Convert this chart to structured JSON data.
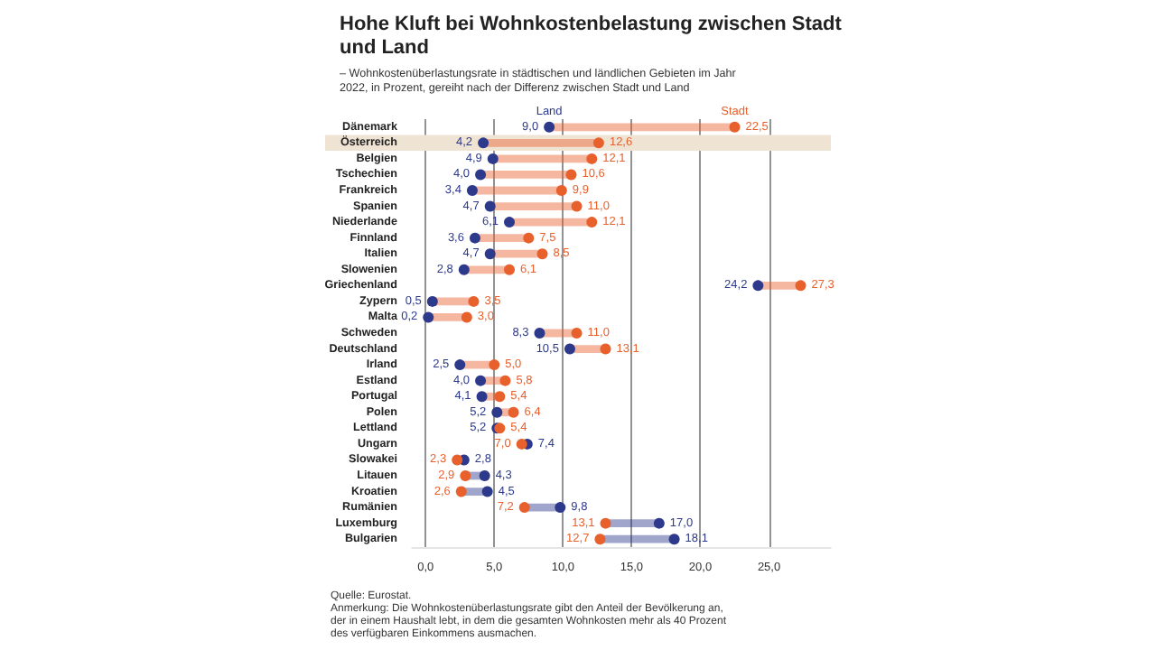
{
  "chart_data": {
    "type": "scatter",
    "orientation": "horizontal",
    "title": "Hohe Kluft bei Wohnkostenbelastung zwischen Stadt und Land",
    "subtitle": "– Wohnkostenüberlastungsrate in städtischen und ländlichen Gebieten im Jahr 2022, in Prozent, gereiht nach der Differenz zwischen Stadt und Land",
    "categories": [
      "Dänemark",
      "Österreich",
      "Belgien",
      "Tschechien",
      "Frankreich",
      "Spanien",
      "Niederlande",
      "Finnland",
      "Italien",
      "Slowenien",
      "Griechenland",
      "Zypern",
      "Malta",
      "Schweden",
      "Deutschland",
      "Irland",
      "Estland",
      "Portugal",
      "Polen",
      "Lettland",
      "Ungarn",
      "Slowakei",
      "Litauen",
      "Kroatien",
      "Rumänien",
      "Luxemburg",
      "Bulgarien"
    ],
    "series": [
      {
        "name": "Land",
        "color": "#2d3a8c",
        "values": [
          9.0,
          4.2,
          4.9,
          4.0,
          3.4,
          4.7,
          6.1,
          3.6,
          4.7,
          2.8,
          24.2,
          0.5,
          0.2,
          8.3,
          10.5,
          2.5,
          4.0,
          4.1,
          5.2,
          5.2,
          7.4,
          2.8,
          4.3,
          4.5,
          9.8,
          17.0,
          18.1
        ],
        "value_labels": [
          "9,0",
          "4,2",
          "4,9",
          "4,0",
          "3,4",
          "4,7",
          "6,1",
          "3,6",
          "4,7",
          "2,8",
          "24,2",
          "0,5",
          "0,2",
          "8,3",
          "10,5",
          "2,5",
          "4,0",
          "4,1",
          "5,2",
          "5,2",
          "7,4",
          "2,8",
          "4,3",
          "4,5",
          "9,8",
          "17,0",
          "18,1"
        ]
      },
      {
        "name": "Stadt",
        "color": "#e8602c",
        "values": [
          22.5,
          12.6,
          12.1,
          10.6,
          9.9,
          11.0,
          12.1,
          7.5,
          8.5,
          6.1,
          27.3,
          3.5,
          3.0,
          11.0,
          13.1,
          5.0,
          5.8,
          5.4,
          6.4,
          5.4,
          7.0,
          2.3,
          2.9,
          2.6,
          7.2,
          13.1,
          12.7
        ],
        "value_labels": [
          "22,5",
          "12,6",
          "12,1",
          "10,6",
          "9,9",
          "11,0",
          "12,1",
          "7,5",
          "8,5",
          "6,1",
          "27,3",
          "3,5",
          "3,0",
          "11,0",
          "13,1",
          "5,0",
          "5,8",
          "5,4",
          "6,4",
          "5,4",
          "7,0",
          "2,3",
          "2,9",
          "2,6",
          "7,2",
          "13,1",
          "12,7"
        ]
      }
    ],
    "xlim": [
      -1,
      29.5
    ],
    "xticks": [
      {
        "value": 0,
        "label": "0,0"
      },
      {
        "value": 5,
        "label": "5,0"
      },
      {
        "value": 10,
        "label": "10,0"
      },
      {
        "value": 15,
        "label": "15,0"
      },
      {
        "value": 20,
        "label": "20,0"
      },
      {
        "value": 25,
        "label": "25,0"
      }
    ],
    "grid": "x",
    "legend": false,
    "marker": "circle",
    "bands": [
      {
        "axis": "y",
        "from": "Österreich",
        "to": "Österreich",
        "color": "#efe3d3"
      }
    ],
    "annotations": [
      "Quelle: Eurostat.",
      "Anmerkung: Die Wohnkostenüberlastungsrate gibt den Anteil der Bevölkerung an, der in einem Haushalt lebt, in dem die gesamten Wohnkosten mehr als 40 Prozent des verfügbaren Einkommens ausmachen."
    ]
  }
}
